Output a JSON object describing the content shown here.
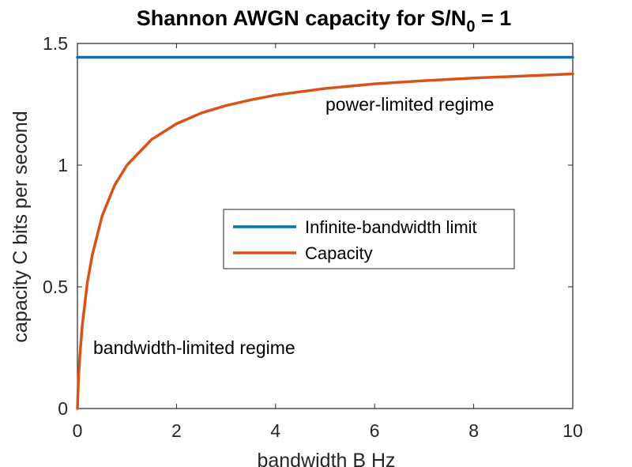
{
  "chart_data": {
    "type": "line",
    "title_prefix": "Shannon AWGN capacity for S/N",
    "title_subscript": "0",
    "title_suffix": " = 1",
    "xlabel": "bandwidth B Hz",
    "ylabel": "capacity C bits per second",
    "xlim": [
      0,
      10
    ],
    "ylim": [
      0,
      1.5
    ],
    "x_ticks": [
      0,
      2,
      4,
      6,
      8,
      10
    ],
    "x_tick_labels": [
      "0",
      "2",
      "4",
      "6",
      "8",
      "10"
    ],
    "y_ticks": [
      0,
      0.5,
      1,
      1.5
    ],
    "y_tick_labels": [
      "0",
      "0.5",
      "1",
      "1.5"
    ],
    "grid": false,
    "legend_position": "center-right",
    "series": [
      {
        "name": "Infinite-bandwidth limit",
        "color": "#0072BD",
        "x": [
          0,
          10
        ],
        "y": [
          1.443,
          1.443
        ]
      },
      {
        "name": "Capacity",
        "color": "#D95319",
        "x": [
          0,
          0.02,
          0.05,
          0.1,
          0.2,
          0.3,
          0.5,
          0.75,
          1,
          1.5,
          2,
          2.5,
          3,
          3.5,
          4,
          5,
          6,
          7,
          8,
          9,
          10
        ],
        "y": [
          0,
          0.113,
          0.22,
          0.346,
          0.517,
          0.631,
          0.792,
          0.917,
          1.0,
          1.106,
          1.17,
          1.214,
          1.245,
          1.268,
          1.288,
          1.315,
          1.334,
          1.347,
          1.358,
          1.366,
          1.375
        ]
      }
    ],
    "annotations": [
      "power-limited regime",
      "bandwidth-limited regime"
    ]
  }
}
